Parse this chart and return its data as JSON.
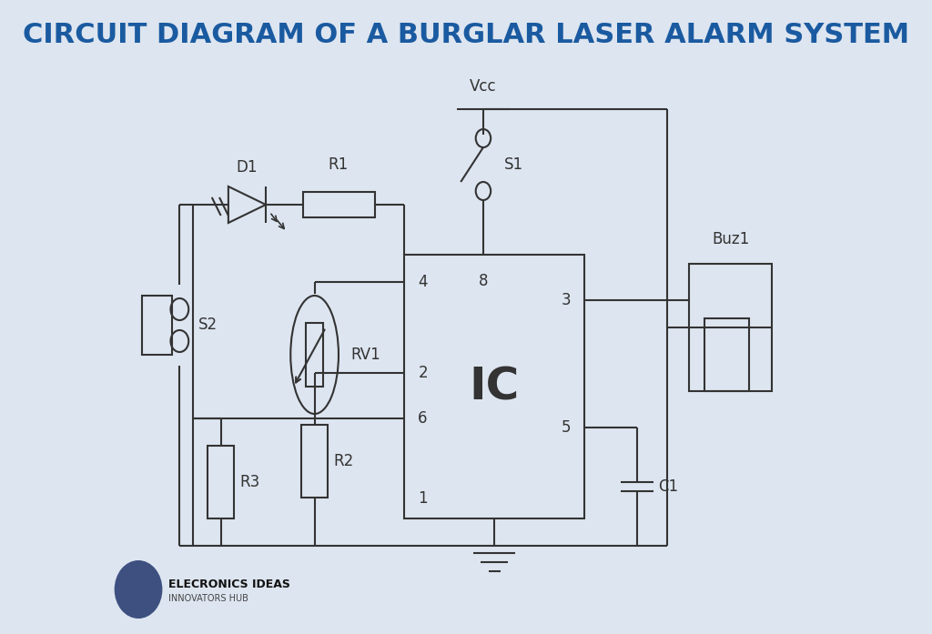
{
  "title": "CIRCUIT DIAGRAM OF A BURGLAR LASER ALARM SYSTEM",
  "title_color": "#1a5aa0",
  "bg_color": "#dde5f0",
  "line_color": "#333333",
  "line_width": 1.5,
  "logo_color": "#3d5080",
  "logo_text1": "ELECRONICS IDEAS",
  "logo_text2": "INNOVATORS HUB"
}
